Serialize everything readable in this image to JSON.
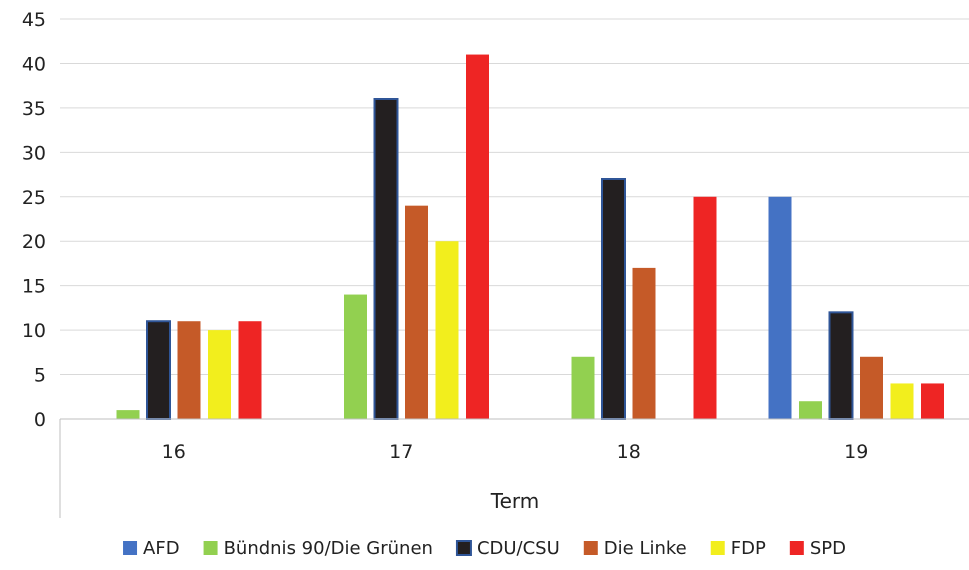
{
  "chart_data": {
    "type": "bar",
    "categories": [
      "16",
      "17",
      "18",
      "19"
    ],
    "xlabel": "Term",
    "ylabel": "",
    "ylim": [
      0,
      45
    ],
    "yticks": [
      0,
      5,
      10,
      15,
      20,
      25,
      30,
      35,
      40,
      45
    ],
    "grid": "horizontal",
    "legend_position": "bottom",
    "series": [
      {
        "name": "AFD",
        "color": "#4472C4",
        "values": [
          0,
          0,
          0,
          25
        ]
      },
      {
        "name": "Bündnis 90/Die Grünen",
        "color": "#92D050",
        "values": [
          1,
          14,
          7,
          2
        ]
      },
      {
        "name": "CDU/CSU",
        "color": "#231F20",
        "edge": "#2F5597",
        "values": [
          11,
          36,
          27,
          12
        ]
      },
      {
        "name": "Die Linke",
        "color": "#C55A28",
        "values": [
          11,
          24,
          17,
          7
        ]
      },
      {
        "name": "FDP",
        "color": "#F2EE1D",
        "values": [
          10,
          20,
          0,
          4
        ]
      },
      {
        "name": "SPD",
        "color": "#EE2524",
        "values": [
          11,
          41,
          25,
          4
        ]
      }
    ]
  }
}
